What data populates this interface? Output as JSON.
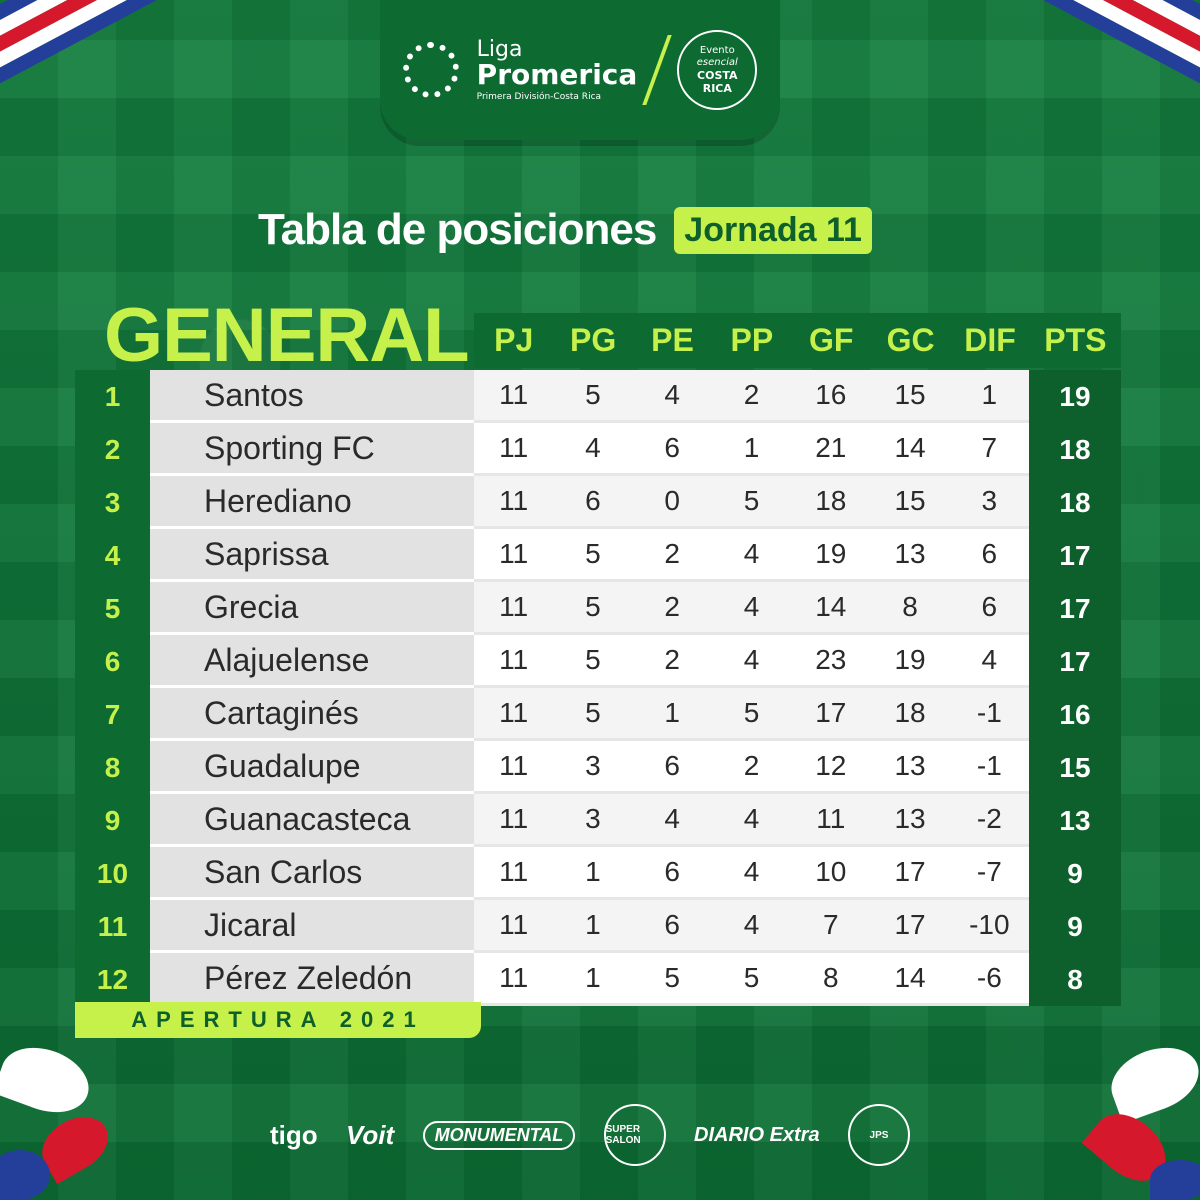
{
  "header": {
    "brand_top": "Liga",
    "brand_main": "Promerica",
    "brand_sub": "Primera División-Costa Rica",
    "evento_1": "Evento",
    "evento_2": "esencial",
    "evento_3": "COSTA",
    "evento_4": "RICA"
  },
  "title": "Tabla de posiciones",
  "jornada": "Jornada 11",
  "section": "GENERAL",
  "columns": [
    "PJ",
    "PG",
    "PE",
    "PP",
    "GF",
    "GC",
    "DIF",
    "PTS"
  ],
  "rows": [
    {
      "pos": "1",
      "team": "Santos",
      "pj": "11",
      "pg": "5",
      "pe": "4",
      "pp": "2",
      "gf": "16",
      "gc": "15",
      "dif": "1",
      "pts": "19"
    },
    {
      "pos": "2",
      "team": "Sporting FC",
      "pj": "11",
      "pg": "4",
      "pe": "6",
      "pp": "1",
      "gf": "21",
      "gc": "14",
      "dif": "7",
      "pts": "18"
    },
    {
      "pos": "3",
      "team": "Herediano",
      "pj": "11",
      "pg": "6",
      "pe": "0",
      "pp": "5",
      "gf": "18",
      "gc": "15",
      "dif": "3",
      "pts": "18"
    },
    {
      "pos": "4",
      "team": "Saprissa",
      "pj": "11",
      "pg": "5",
      "pe": "2",
      "pp": "4",
      "gf": "19",
      "gc": "13",
      "dif": "6",
      "pts": "17"
    },
    {
      "pos": "5",
      "team": "Grecia",
      "pj": "11",
      "pg": "5",
      "pe": "2",
      "pp": "4",
      "gf": "14",
      "gc": "8",
      "dif": "6",
      "pts": "17"
    },
    {
      "pos": "6",
      "team": "Alajuelense",
      "pj": "11",
      "pg": "5",
      "pe": "2",
      "pp": "4",
      "gf": "23",
      "gc": "19",
      "dif": "4",
      "pts": "17"
    },
    {
      "pos": "7",
      "team": "Cartaginés",
      "pj": "11",
      "pg": "5",
      "pe": "1",
      "pp": "5",
      "gf": "17",
      "gc": "18",
      "dif": "-1",
      "pts": "16"
    },
    {
      "pos": "8",
      "team": "Guadalupe",
      "pj": "11",
      "pg": "3",
      "pe": "6",
      "pp": "2",
      "gf": "12",
      "gc": "13",
      "dif": "-1",
      "pts": "15"
    },
    {
      "pos": "9",
      "team": "Guanacasteca",
      "pj": "11",
      "pg": "3",
      "pe": "4",
      "pp": "4",
      "gf": "11",
      "gc": "13",
      "dif": "-2",
      "pts": "13"
    },
    {
      "pos": "10",
      "team": "San Carlos",
      "pj": "11",
      "pg": "1",
      "pe": "6",
      "pp": "4",
      "gf": "10",
      "gc": "17",
      "dif": "-7",
      "pts": "9"
    },
    {
      "pos": "11",
      "team": "Jicaral",
      "pj": "11",
      "pg": "1",
      "pe": "6",
      "pp": "4",
      "gf": "7",
      "gc": "17",
      "dif": "-10",
      "pts": "9"
    },
    {
      "pos": "12",
      "team": "Pérez Zeledón",
      "pj": "11",
      "pg": "1",
      "pe": "5",
      "pp": "5",
      "gf": "8",
      "gc": "14",
      "dif": "-6",
      "pts": "8"
    }
  ],
  "tournament": "APERTURA 2021",
  "sponsors": [
    "tigo",
    "Voit",
    "MONUMENTAL",
    "SUPER SALON",
    "DIARIO Extra",
    "JPS"
  ],
  "colors": {
    "background": "#0f7a3a",
    "dark_green": "#0d6b32",
    "accent": "#c6f04a",
    "flag_blue": "#233f9a",
    "flag_red": "#d6182c"
  }
}
